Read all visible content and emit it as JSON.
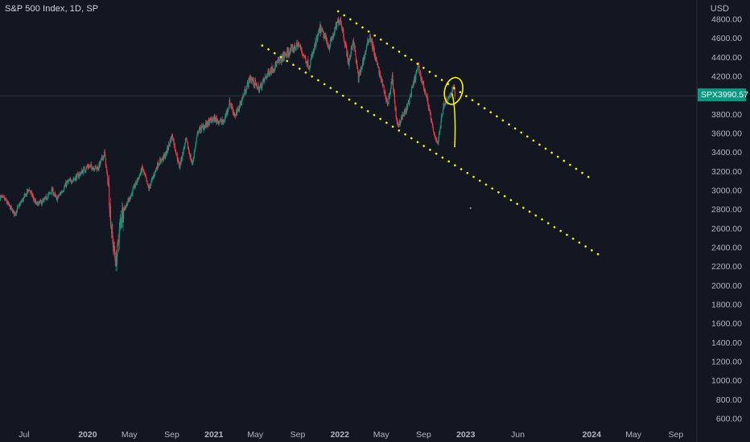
{
  "legend": "S&P 500 Index, 1D, SP",
  "currency": "USD",
  "price_tag": {
    "symbol": "SPX",
    "price": "3990.57"
  },
  "colors": {
    "background": "#131722",
    "up": "#089981",
    "down": "#f23645",
    "annotation": "#f5f500",
    "axis_text": "#b2b5be"
  },
  "chart_data": {
    "type": "candlestick",
    "title": "S&P 500 Index, 1D, SP",
    "ylabel": "USD",
    "ylim": [
      520,
      4880
    ],
    "xlim": [
      "2019-04-22",
      "2024-11-01"
    ],
    "y_ticks": [
      "600.00",
      "800.00",
      "1000.00",
      "1200.00",
      "1400.00",
      "1600.00",
      "1800.00",
      "2000.00",
      "2200.00",
      "2400.00",
      "2600.00",
      "2800.00",
      "3000.00",
      "3200.00",
      "3400.00",
      "3600.00",
      "3800.00",
      "4000.00",
      "4200.00",
      "4400.00",
      "4600.00",
      "4800.00"
    ],
    "x_ticks": [
      {
        "label": "Jul",
        "date": "2019-07-01"
      },
      {
        "label": "2020",
        "date": "2020-01-01"
      },
      {
        "label": "May",
        "date": "2020-05-01"
      },
      {
        "label": "Sep",
        "date": "2020-09-01"
      },
      {
        "label": "2021",
        "date": "2021-01-01"
      },
      {
        "label": "May",
        "date": "2021-05-01"
      },
      {
        "label": "Sep",
        "date": "2021-09-01"
      },
      {
        "label": "2022",
        "date": "2022-01-01"
      },
      {
        "label": "May",
        "date": "2022-05-01"
      },
      {
        "label": "Sep",
        "date": "2022-09-01"
      },
      {
        "label": "2023",
        "date": "2023-01-01"
      },
      {
        "label": "Jun",
        "date": "2023-06-01"
      },
      {
        "label": "2024",
        "date": "2024-01-01"
      },
      {
        "label": "May",
        "date": "2024-05-01"
      },
      {
        "label": "Sep",
        "date": "2024-09-01"
      }
    ],
    "price_path": [
      [
        "2019-04-22",
        2930
      ],
      [
        "2019-05-06",
        2900
      ],
      [
        "2019-06-03",
        2750
      ],
      [
        "2019-07-15",
        3010
      ],
      [
        "2019-08-05",
        2850
      ],
      [
        "2019-08-26",
        2880
      ],
      [
        "2019-09-20",
        3000
      ],
      [
        "2019-10-03",
        2900
      ],
      [
        "2019-11-01",
        3070
      ],
      [
        "2019-12-01",
        3140
      ],
      [
        "2020-01-01",
        3250
      ],
      [
        "2020-01-31",
        3230
      ],
      [
        "2020-02-19",
        3390
      ],
      [
        "2020-03-02",
        3000
      ],
      [
        "2020-03-12",
        2500
      ],
      [
        "2020-03-23",
        2230
      ],
      [
        "2020-04-08",
        2750
      ],
      [
        "2020-04-30",
        2900
      ],
      [
        "2020-06-08",
        3230
      ],
      [
        "2020-06-26",
        3010
      ],
      [
        "2020-07-22",
        3270
      ],
      [
        "2020-08-14",
        3370
      ],
      [
        "2020-09-02",
        3580
      ],
      [
        "2020-09-23",
        3240
      ],
      [
        "2020-10-12",
        3530
      ],
      [
        "2020-10-30",
        3270
      ],
      [
        "2020-11-16",
        3620
      ],
      [
        "2020-12-31",
        3750
      ],
      [
        "2021-01-29",
        3710
      ],
      [
        "2021-02-16",
        3930
      ],
      [
        "2021-03-04",
        3770
      ],
      [
        "2021-04-16",
        4180
      ],
      [
        "2021-05-12",
        4060
      ],
      [
        "2021-06-07",
        4230
      ],
      [
        "2021-07-23",
        4410
      ],
      [
        "2021-08-31",
        4520
      ],
      [
        "2021-09-02",
        4540
      ],
      [
        "2021-10-04",
        4300
      ],
      [
        "2021-11-05",
        4700
      ],
      [
        "2021-12-01",
        4510
      ],
      [
        "2021-12-29",
        4790
      ],
      [
        "2022-01-03",
        4800
      ],
      [
        "2022-01-27",
        4330
      ],
      [
        "2022-02-09",
        4590
      ],
      [
        "2022-02-24",
        4170
      ],
      [
        "2022-03-29",
        4630
      ],
      [
        "2022-04-14",
        4390
      ],
      [
        "2022-05-20",
        3900
      ],
      [
        "2022-06-02",
        4180
      ],
      [
        "2022-06-16",
        3670
      ],
      [
        "2022-07-15",
        3860
      ],
      [
        "2022-08-16",
        4300
      ],
      [
        "2022-09-13",
        3930
      ],
      [
        "2022-09-30",
        3590
      ],
      [
        "2022-10-13",
        3500
      ],
      [
        "2022-10-28",
        3900
      ],
      [
        "2022-11-10",
        3960
      ],
      [
        "2022-11-30",
        4080
      ],
      [
        "2022-12-01",
        3990
      ]
    ],
    "annotations": {
      "trendlines": [
        {
          "start": [
            "2021-12-27",
            4880
          ],
          "end": [
            "2024-01-03",
            3110
          ]
        },
        {
          "start": [
            "2021-05-21",
            4520
          ],
          "end": [
            "2024-01-22",
            2320
          ]
        }
      ],
      "marker": {
        "date": "2022-11-22",
        "price": 4000
      },
      "freehand_stroke": {
        "start": [
          "2022-11-22",
          4020
        ],
        "end": [
          "2022-11-30",
          3450
        ]
      },
      "dot": [
        "2023-01-15",
        2810
      ]
    }
  }
}
